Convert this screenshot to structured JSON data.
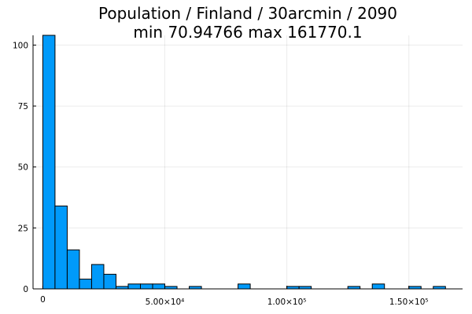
{
  "chart_data": {
    "type": "bar",
    "title": "Population / Finland / 30arcmin / 2090",
    "subtitle": "min 70.94766  max 161770.1",
    "xlabel": "",
    "ylabel": "",
    "bin_width": 5000,
    "xlim": [
      -4000,
      172000
    ],
    "ylim": [
      0,
      104
    ],
    "x_ticks": [
      {
        "value": 0,
        "label": "0"
      },
      {
        "value": 50000,
        "label": "5.00×10⁴"
      },
      {
        "value": 100000,
        "label": "1.00×10⁵"
      },
      {
        "value": 150000,
        "label": "1.50×10⁵"
      }
    ],
    "y_ticks": [
      {
        "value": 0,
        "label": "0"
      },
      {
        "value": 25,
        "label": "25"
      },
      {
        "value": 50,
        "label": "50"
      },
      {
        "value": 75,
        "label": "75"
      },
      {
        "value": 100,
        "label": "100"
      }
    ],
    "grid": true,
    "legend": "none",
    "bins": [
      {
        "x0": 0,
        "count": 104
      },
      {
        "x0": 5000,
        "count": 34
      },
      {
        "x0": 10000,
        "count": 16
      },
      {
        "x0": 15000,
        "count": 4
      },
      {
        "x0": 20000,
        "count": 10
      },
      {
        "x0": 25000,
        "count": 6
      },
      {
        "x0": 30000,
        "count": 1
      },
      {
        "x0": 35000,
        "count": 2
      },
      {
        "x0": 40000,
        "count": 2
      },
      {
        "x0": 45000,
        "count": 2
      },
      {
        "x0": 50000,
        "count": 1
      },
      {
        "x0": 60000,
        "count": 1
      },
      {
        "x0": 80000,
        "count": 2
      },
      {
        "x0": 100000,
        "count": 1
      },
      {
        "x0": 105000,
        "count": 1
      },
      {
        "x0": 125000,
        "count": 1
      },
      {
        "x0": 135000,
        "count": 2
      },
      {
        "x0": 150000,
        "count": 1
      },
      {
        "x0": 160000,
        "count": 1
      }
    ],
    "colors": {
      "bar": "#009AFA",
      "outline": "#000000"
    }
  }
}
